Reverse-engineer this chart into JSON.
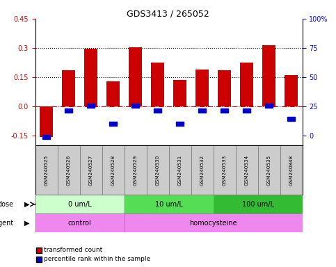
{
  "title": "GDS3413 / 265052",
  "samples": [
    "GSM240525",
    "GSM240526",
    "GSM240527",
    "GSM240528",
    "GSM240529",
    "GSM240530",
    "GSM240531",
    "GSM240532",
    "GSM240533",
    "GSM240534",
    "GSM240535",
    "GSM240848"
  ],
  "transformed_count": [
    -0.155,
    0.185,
    0.295,
    0.13,
    0.305,
    0.225,
    0.135,
    0.19,
    0.185,
    0.225,
    0.315,
    0.16
  ],
  "blue_y": [
    -0.155,
    -0.02,
    0.005,
    -0.09,
    0.005,
    -0.02,
    -0.09,
    -0.02,
    -0.02,
    -0.02,
    0.005,
    -0.065
  ],
  "bar_color": "#cc0000",
  "blue_color": "#0000cc",
  "ylim_left": [
    -0.2,
    0.45
  ],
  "yticks_left": [
    -0.15,
    0.0,
    0.15,
    0.3,
    0.45
  ],
  "yticks_right": [
    0,
    25,
    50,
    75,
    100
  ],
  "dose_groups": [
    {
      "label": "0 um/L",
      "start": 0,
      "end": 3,
      "color": "#ccffcc"
    },
    {
      "label": "10 um/L",
      "start": 4,
      "end": 7,
      "color": "#55dd55"
    },
    {
      "label": "100 um/L",
      "start": 8,
      "end": 11,
      "color": "#33bb33"
    }
  ],
  "agent_groups": [
    {
      "label": "control",
      "start": 0,
      "end": 3,
      "color": "#ee88ee"
    },
    {
      "label": "homocysteine",
      "start": 4,
      "end": 11,
      "color": "#ee88ee"
    }
  ],
  "legend_red": "transformed count",
  "legend_blue": "percentile rank within the sample",
  "hline_y": 0.0,
  "dotted_lines": [
    0.15,
    0.3
  ],
  "background_color": "#ffffff"
}
